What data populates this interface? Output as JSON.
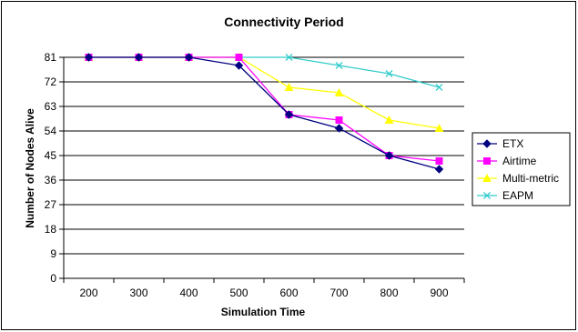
{
  "chart_data": {
    "type": "line",
    "title": "Connectivity Period",
    "xlabel": "Simulation Time",
    "ylabel": "Number of Nodes Alive",
    "x": [
      "200",
      "300",
      "400",
      "500",
      "600",
      "700",
      "800",
      "900"
    ],
    "yticks": [
      "0",
      "9",
      "18",
      "27",
      "36",
      "45",
      "54",
      "63",
      "72",
      "81"
    ],
    "ylim": [
      0,
      81
    ],
    "grid": "horizontal",
    "legend": "right",
    "series": [
      {
        "name": "ETX",
        "color": "#000080",
        "marker": "diamond",
        "values": [
          81,
          81,
          81,
          78,
          60,
          55,
          45,
          40
        ]
      },
      {
        "name": "Airtime",
        "color": "#FF00FF",
        "marker": "square",
        "values": [
          81,
          81,
          81,
          81,
          60,
          58,
          45,
          43
        ]
      },
      {
        "name": "Multi-metric",
        "color": "#FFFF00",
        "marker": "triangle",
        "values": [
          81,
          81,
          81,
          81,
          70,
          68,
          58,
          55
        ]
      },
      {
        "name": "EAPM",
        "color": "#33CCCC",
        "marker": "x",
        "values": [
          81,
          81,
          81,
          81,
          81,
          78,
          75,
          70
        ]
      }
    ]
  }
}
